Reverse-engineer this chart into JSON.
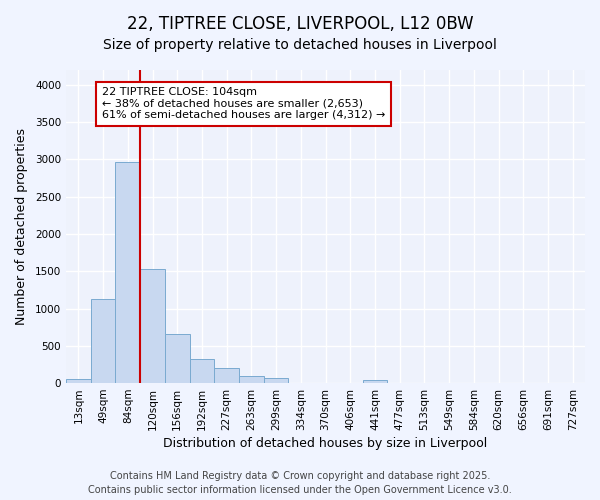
{
  "title1": "22, TIPTREE CLOSE, LIVERPOOL, L12 0BW",
  "title2": "Size of property relative to detached houses in Liverpool",
  "xlabel": "Distribution of detached houses by size in Liverpool",
  "ylabel": "Number of detached properties",
  "categories": [
    "13sqm",
    "49sqm",
    "84sqm",
    "120sqm",
    "156sqm",
    "192sqm",
    "227sqm",
    "263sqm",
    "299sqm",
    "334sqm",
    "370sqm",
    "406sqm",
    "441sqm",
    "477sqm",
    "513sqm",
    "549sqm",
    "584sqm",
    "620sqm",
    "656sqm",
    "691sqm",
    "727sqm"
  ],
  "values": [
    55,
    1130,
    2970,
    1530,
    660,
    320,
    200,
    90,
    70,
    0,
    0,
    0,
    35,
    0,
    0,
    0,
    0,
    0,
    0,
    0,
    0
  ],
  "bar_color": "#c8d8f0",
  "bar_edge_color": "#7aaad0",
  "vline_x": 2.5,
  "vline_color": "#cc0000",
  "annotation_text": "22 TIPTREE CLOSE: 104sqm\n← 38% of detached houses are smaller (2,653)\n61% of semi-detached houses are larger (4,312) →",
  "annotation_box_color": "#cc0000",
  "annotation_box_bg": "#ffffff",
  "ylim": [
    0,
    4200
  ],
  "yticks": [
    0,
    500,
    1000,
    1500,
    2000,
    2500,
    3000,
    3500,
    4000
  ],
  "footer1": "Contains HM Land Registry data © Crown copyright and database right 2025.",
  "footer2": "Contains public sector information licensed under the Open Government Licence v3.0.",
  "bg_color": "#f0f4ff",
  "plot_bg_color": "#eef2fc",
  "grid_color": "#ffffff",
  "title_fontsize": 12,
  "subtitle_fontsize": 10,
  "label_fontsize": 9,
  "tick_fontsize": 7.5,
  "footer_fontsize": 7
}
